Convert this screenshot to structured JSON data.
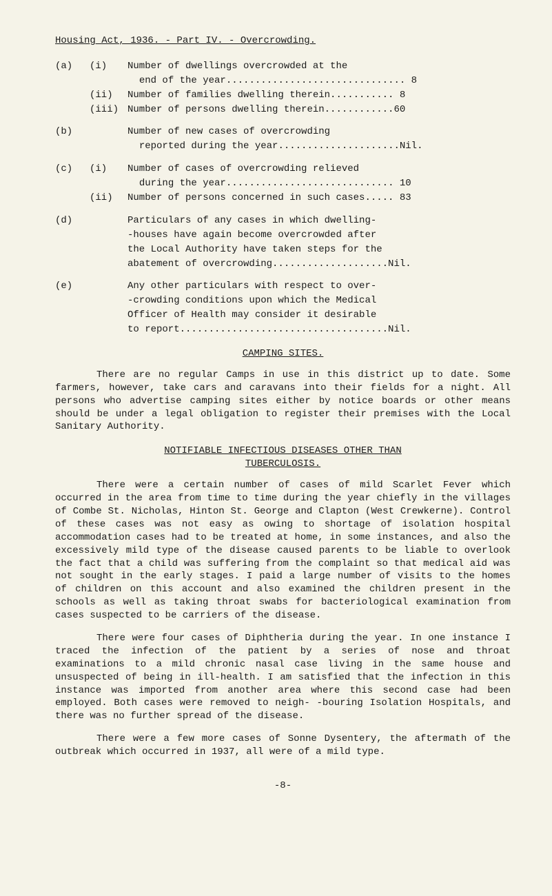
{
  "header": "Housing Act, 1936. - Part IV. - Overcrowding.",
  "items": {
    "a_label": "(a)",
    "a_i_label": "(i)",
    "a_i_text1": "Number of dwellings overcrowded at the",
    "a_i_text2": "end of the year............................... 8",
    "a_ii_label": "(ii)",
    "a_ii_text": "Number of families dwelling therein........... 8",
    "a_iii_label": "(iii)",
    "a_iii_text": "Number of persons dwelling therein............60",
    "b_label": "(b)",
    "b_text1": "Number of new cases of overcrowding",
    "b_text2": "reported during the year.....................Nil.",
    "c_label": "(c)",
    "c_i_label": "(i)",
    "c_i_text1": "Number of cases of overcrowding relieved",
    "c_i_text2": "during the year............................. 10",
    "c_ii_label": "(ii)",
    "c_ii_text": "Number of persons concerned in such cases..... 83",
    "d_label": "(d)",
    "d_text1": "Particulars of any cases in which dwelling-",
    "d_text2": "-houses have again become overcrowded after",
    "d_text3": "the Local Authority have taken steps for the",
    "d_text4": "abatement of overcrowding....................Nil.",
    "e_label": "(e)",
    "e_text1": "Any other particulars with respect to over-",
    "e_text2": "-crowding conditions upon which the Medical",
    "e_text3": "Officer of Health may consider it desirable",
    "e_text4": "to report....................................Nil."
  },
  "headings": {
    "camping": "CAMPING SITES.",
    "notifiable1": "NOTIFIABLE INFECTIOUS DISEASES OTHER THAN",
    "notifiable2": "TUBERCULOSIS."
  },
  "paras": {
    "p1": "There are no regular Camps in use in this district up to date. Some farmers, however, take cars and caravans into their fields for a night. All persons who advertise camping sites either by notice boards or other means should be under a legal obligation to register their premises with the Local Sanitary Authority.",
    "p2": "There were a certain number of cases of mild Scarlet Fever which occurred in the area from time to time during the year chiefly in the villages of Combe St. Nicholas, Hinton St. George and Clapton (West Crewkerne). Control of these cases was not easy as owing to shortage of isolation hospital accommodation cases had to be treated at home, in some instances, and also the excessively mild type of the disease caused parents to be liable to overlook the fact that a child was suffering from the complaint so that medical aid was not sought in the early stages. I paid a large number of visits to the homes of children on this account and also examined the children present in the schools as well as taking throat swabs for bacteriological examination from cases suspected to be carriers of the disease.",
    "p3": "There were four cases of Diphtheria during the year. In one instance I traced the infection of the patient by a series of nose and throat examinations to a mild chronic nasal case living in the same house and unsuspected of being in ill-health. I am satisfied that the infection in this instance was imported from another area where this second case had been employed. Both cases were removed to neigh- -bouring Isolation Hospitals, and there was no further spread of the disease.",
    "p4": "There were a few more cases of Sonne Dysentery, the aftermath of the outbreak which occurred in 1937, all were of a mild type."
  },
  "page": "-8-"
}
